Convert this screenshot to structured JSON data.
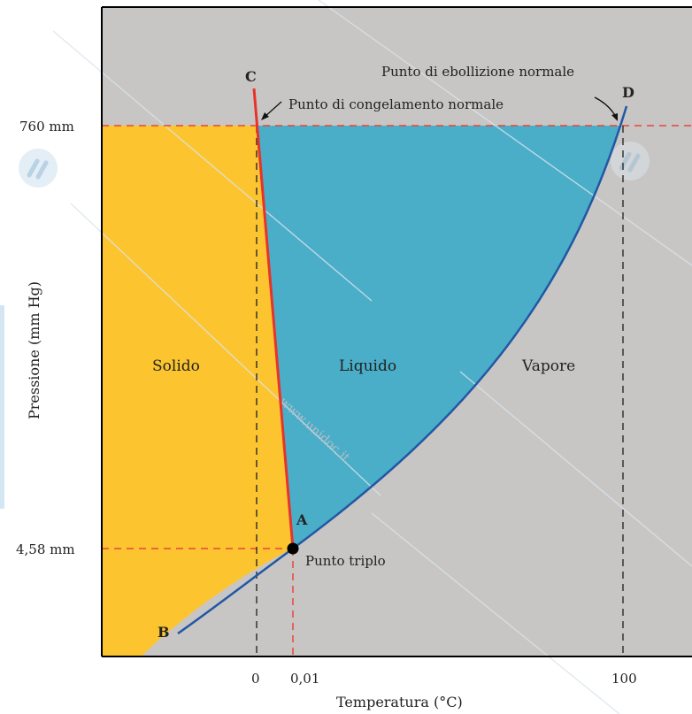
{
  "axes": {
    "y_title": "Pressione (mm Hg)",
    "x_title": "Temperatura (°C)",
    "y_ticks": [
      "760 mm",
      "4,58 mm"
    ],
    "x_ticks": [
      "0",
      "0,01",
      "100"
    ]
  },
  "regions": {
    "solid": "Solido",
    "liquid": "Liquido",
    "vapor": "Vapore"
  },
  "points": {
    "a": "A",
    "b": "B",
    "c": "C",
    "d": "D"
  },
  "annotations": {
    "boiling": "Punto di ebollizione normale",
    "freezing": "Punto di congelamento normale",
    "triple": "Punto triplo"
  },
  "watermark": "www.unidoc.it",
  "colors": {
    "background": "#c8c6c4",
    "solid": "#fcc52f",
    "liquid": "#4aaec8",
    "fusion_curve": "#e8322b",
    "vapor_curve": "#2257a4",
    "guide_red": "#e8453a",
    "guide_black": "#333333"
  }
}
